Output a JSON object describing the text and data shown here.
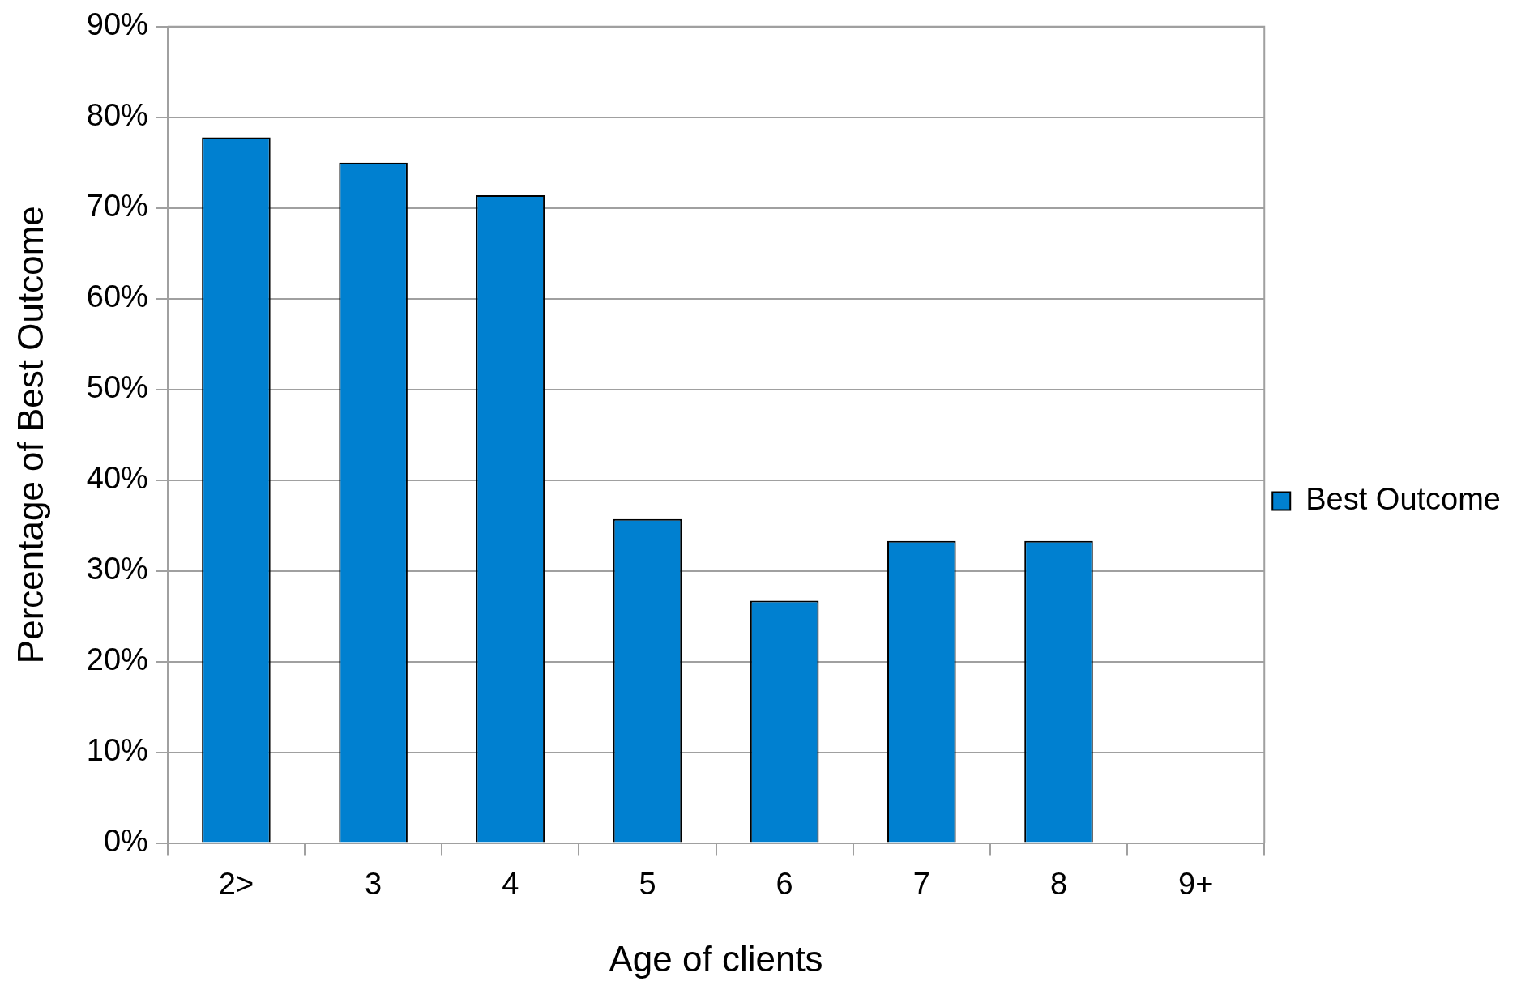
{
  "chart_data": {
    "type": "bar",
    "xlabel": "Age of clients",
    "ylabel": "Percentage of Best Outcome",
    "categories": [
      "2>",
      "3",
      "4",
      "5",
      "6",
      "7",
      "8",
      "9+"
    ],
    "series": [
      {
        "name": "Best Outcome",
        "color": "#0080d0",
        "values": [
          77.8,
          75.0,
          71.4,
          35.7,
          26.7,
          33.3,
          33.3,
          null
        ]
      }
    ],
    "ylim": [
      0,
      90
    ],
    "yticks": [
      {
        "value": 0,
        "label": "0%"
      },
      {
        "value": 10,
        "label": "10%"
      },
      {
        "value": 20,
        "label": "20%"
      },
      {
        "value": 30,
        "label": "30%"
      },
      {
        "value": 40,
        "label": "40%"
      },
      {
        "value": 50,
        "label": "50%"
      },
      {
        "value": 60,
        "label": "60%"
      },
      {
        "value": 70,
        "label": "70%"
      },
      {
        "value": 80,
        "label": "80%"
      },
      {
        "value": 90,
        "label": "90%"
      }
    ],
    "grid": "y",
    "legend": "right"
  }
}
